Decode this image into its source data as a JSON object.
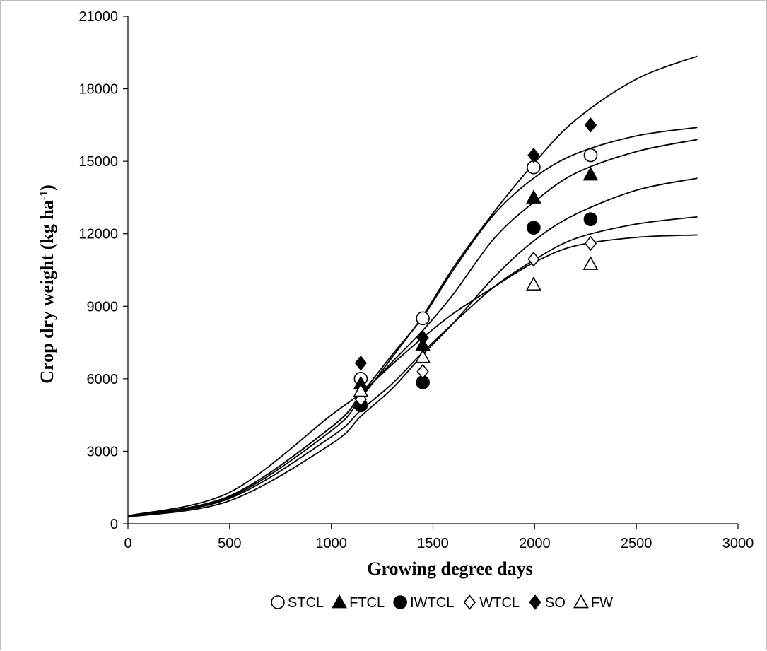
{
  "chart_data": {
    "type": "scatter",
    "title": "",
    "xlabel": "Growing degree days",
    "ylabel_main": "Crop dry weight  (kg ha",
    "ylabel_sup": "-1",
    "ylabel_close": ")",
    "xlim": [
      0,
      3000
    ],
    "ylim": [
      0,
      21000
    ],
    "x_ticks": [
      0,
      500,
      1000,
      1500,
      2000,
      2500,
      3000
    ],
    "x_tick_labels": [
      "0",
      "500",
      "1000",
      "1500",
      "2000",
      "2500",
      "3000"
    ],
    "y_ticks": [
      0,
      3000,
      6000,
      9000,
      12000,
      15000,
      18000,
      21000
    ],
    "y_tick_labels": [
      "0",
      "3000",
      "6000",
      "9000",
      "12000",
      "15000",
      "18000",
      "21000"
    ],
    "grid": false,
    "legend_position": "bottom",
    "series": [
      {
        "name": "STCL",
        "marker": "circle-open",
        "x": [
          1145,
          1450,
          1995,
          2275
        ],
        "y": [
          6000,
          8500,
          14750,
          15250
        ],
        "curve": {
          "x": [
            0,
            500,
            1000,
            1145,
            1300,
            1450,
            1600,
            1800,
            1995,
            2200,
            2500,
            2800
          ],
          "y": [
            330,
            1150,
            4000,
            5350,
            7000,
            8550,
            10500,
            12800,
            14300,
            15300,
            16050,
            16400
          ]
        }
      },
      {
        "name": "FTCL",
        "marker": "triangle-filled",
        "x": [
          1145,
          1450,
          1995,
          2275
        ],
        "y": [
          5800,
          7400,
          13500,
          14450
        ],
        "curve": {
          "x": [
            0,
            500,
            1000,
            1145,
            1300,
            1450,
            1600,
            1800,
            1995,
            2200,
            2500,
            2800
          ],
          "y": [
            310,
            1150,
            4000,
            5300,
            6700,
            8000,
            9500,
            11800,
            13300,
            14500,
            15400,
            15900
          ]
        }
      },
      {
        "name": "IWTCL",
        "marker": "circle-filled",
        "x": [
          1145,
          1450,
          1995,
          2275
        ],
        "y": [
          4900,
          5850,
          12250,
          12600
        ],
        "curve": {
          "x": [
            0,
            500,
            1000,
            1145,
            1300,
            1450,
            1600,
            1800,
            1995,
            2200,
            2500,
            2800
          ],
          "y": [
            280,
            950,
            3300,
            4450,
            5600,
            7000,
            8300,
            10200,
            11700,
            12800,
            13800,
            14300
          ]
        }
      },
      {
        "name": "WTCL",
        "marker": "diamond-open",
        "x": [
          1145,
          1450,
          1995,
          2275
        ],
        "y": [
          5150,
          6300,
          10950,
          11600
        ],
        "curve": {
          "x": [
            0,
            500,
            1000,
            1145,
            1300,
            1450,
            1600,
            1800,
            1995,
            2200,
            2500,
            2800
          ],
          "y": [
            290,
            1050,
            3600,
            4700,
            5800,
            7100,
            8300,
            9800,
            10900,
            11800,
            12400,
            12700
          ]
        }
      },
      {
        "name": "SO",
        "marker": "diamond-filled",
        "x": [
          1145,
          1450,
          1995,
          2275
        ],
        "y": [
          6650,
          7700,
          15250,
          16500
        ],
        "curve": {
          "x": [
            0,
            500,
            1000,
            1145,
            1300,
            1450,
            1600,
            1800,
            1995,
            2200,
            2500,
            2800
          ],
          "y": [
            320,
            1100,
            3850,
            5200,
            6900,
            8600,
            10600,
            12900,
            14900,
            16700,
            18400,
            19350
          ]
        }
      },
      {
        "name": "FW",
        "marker": "triangle-open",
        "x": [
          1145,
          1450,
          1995,
          2275
        ],
        "y": [
          5500,
          6900,
          9900,
          10750
        ],
        "curve": {
          "x": [
            0,
            500,
            1000,
            1145,
            1300,
            1450,
            1600,
            1800,
            1995,
            2200,
            2500,
            2800
          ],
          "y": [
            330,
            1300,
            4500,
            5400,
            6600,
            7700,
            8700,
            9800,
            10800,
            11500,
            11850,
            11950
          ]
        }
      }
    ]
  }
}
